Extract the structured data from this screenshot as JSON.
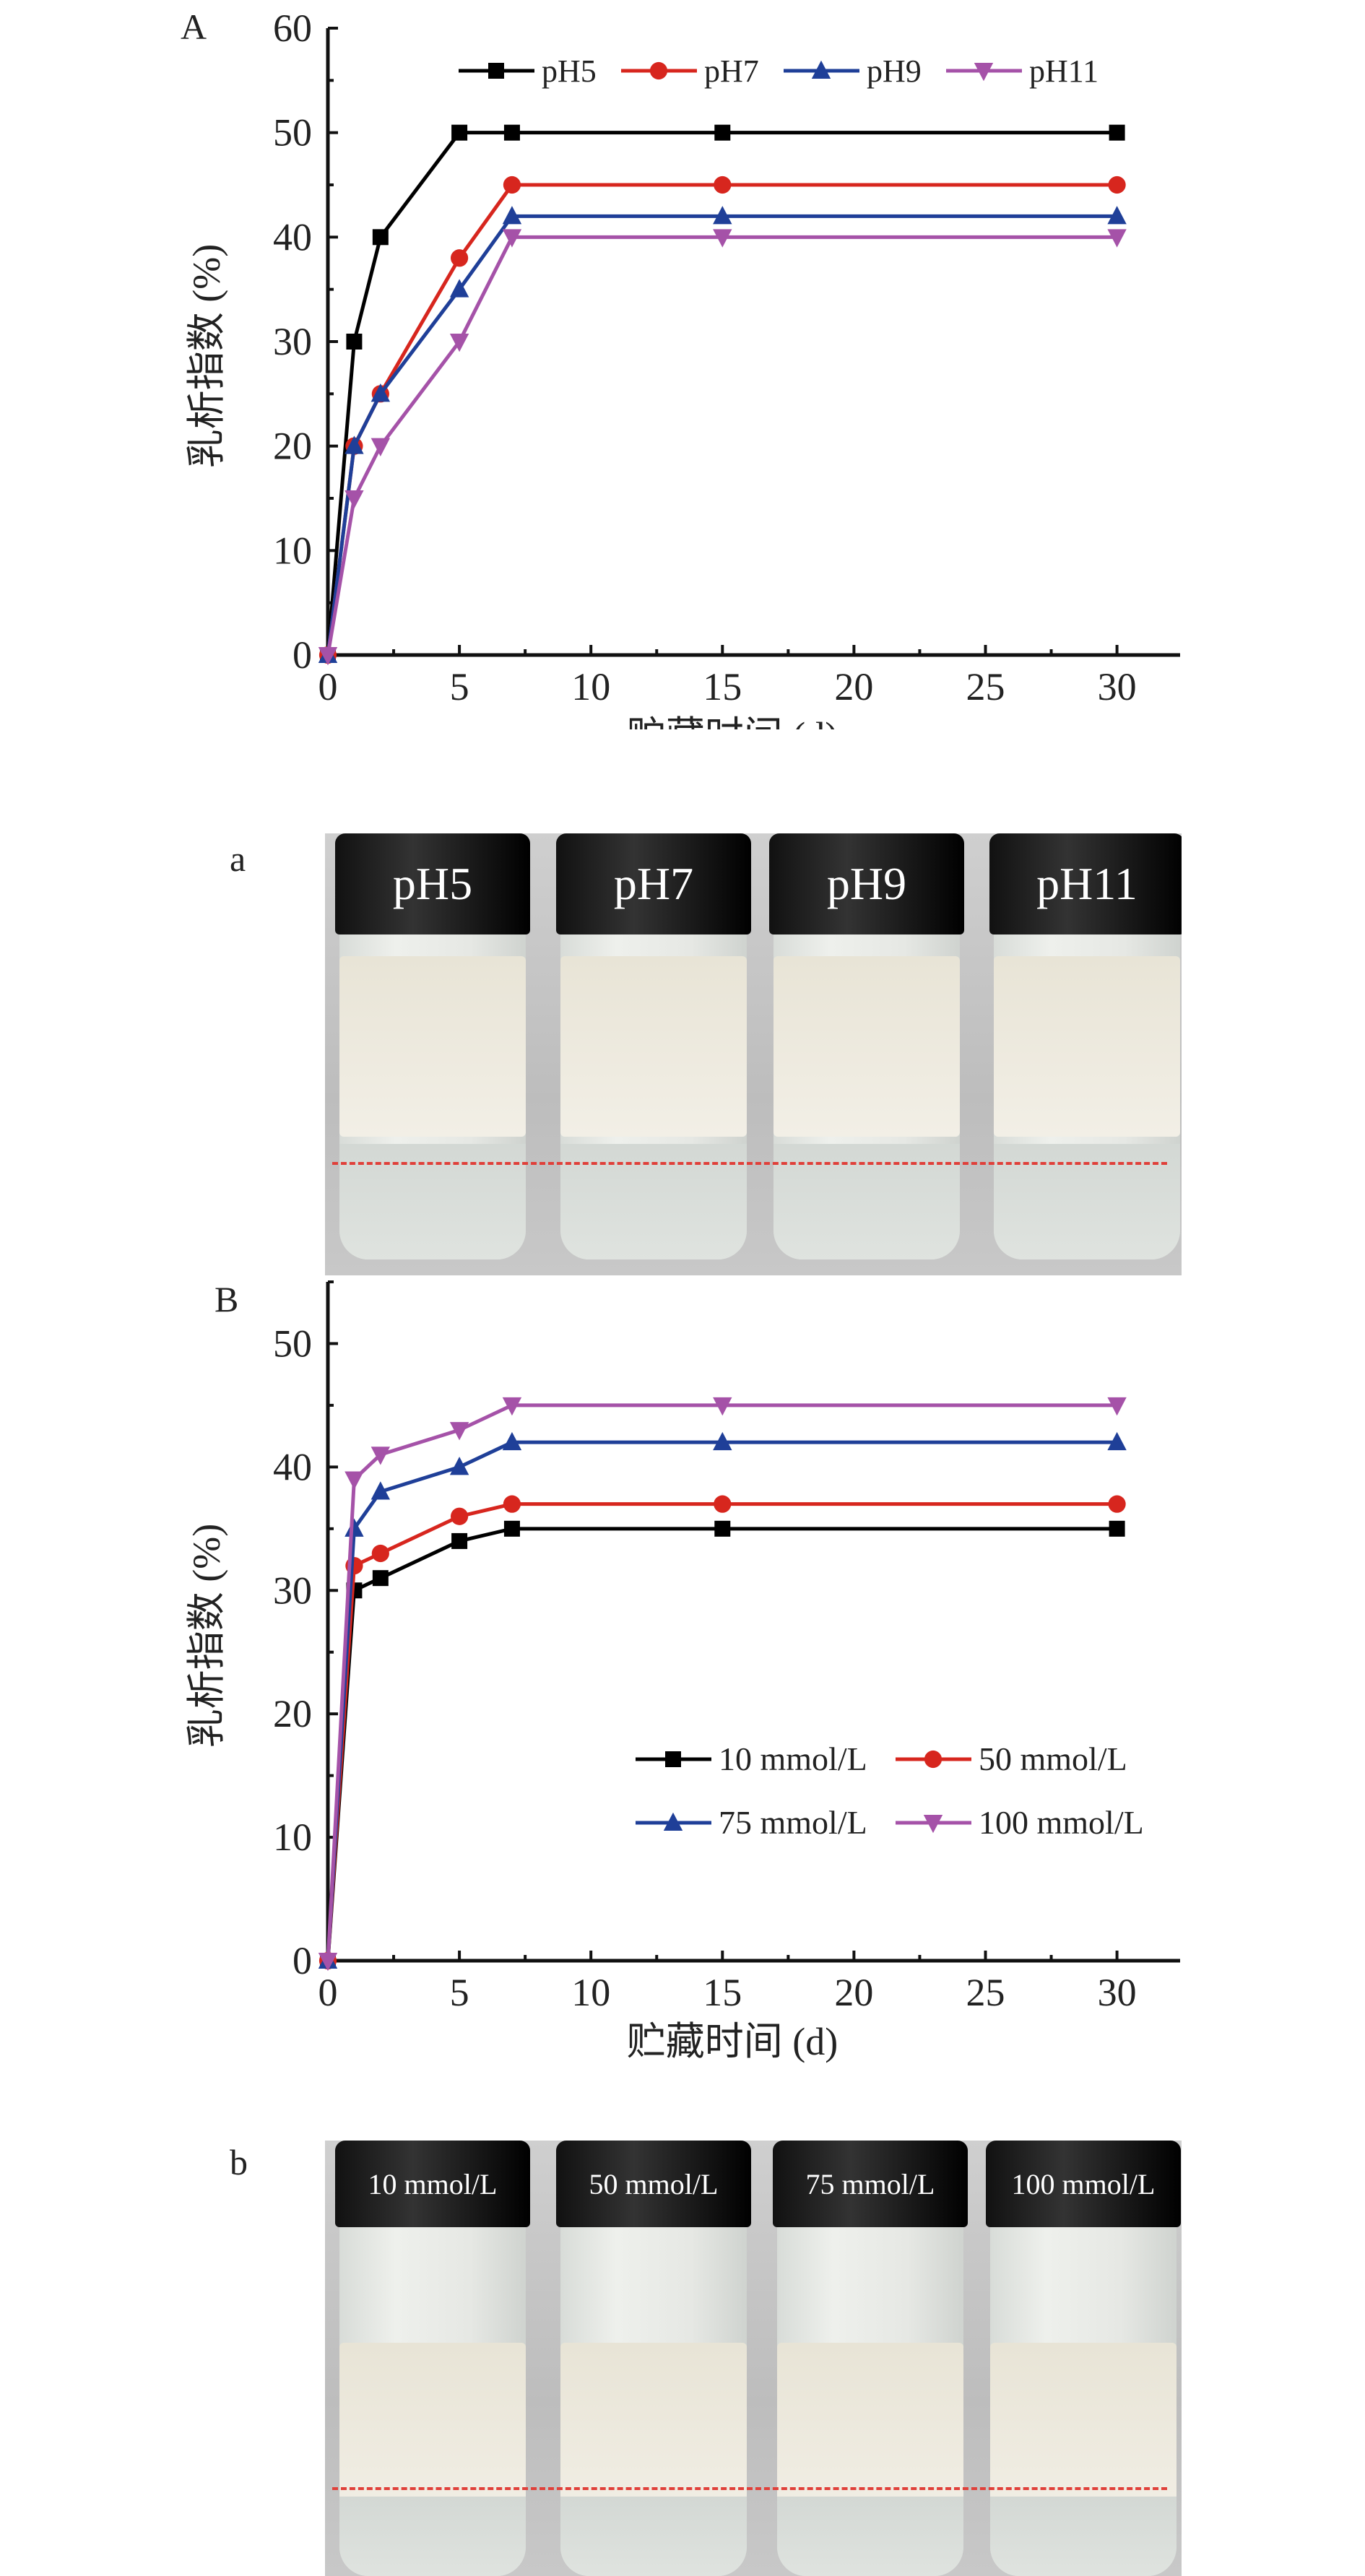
{
  "panels": {
    "A": "A",
    "a": "a",
    "B": "B",
    "b": "b"
  },
  "photo_a": {
    "labels": [
      "pH5",
      "pH7",
      "pH9",
      "pH11"
    ]
  },
  "photo_b": {
    "labels": [
      "10 mmol/L",
      "50 mmol/L",
      "75 mmol/L",
      "100 mmol/L"
    ]
  },
  "chart_data": [
    {
      "type": "line",
      "title": "",
      "xlabel": "贮藏时间 (d)",
      "ylabel": "乳析指数 (%)",
      "xlim": [
        0,
        32.4
      ],
      "ylim": [
        0,
        60
      ],
      "xticks": [
        0,
        5,
        10,
        15,
        20,
        25,
        30
      ],
      "yticks": [
        0,
        10,
        20,
        30,
        40,
        50,
        60
      ],
      "legend_position": "top",
      "x": [
        0,
        1,
        2,
        5,
        7,
        15,
        30
      ],
      "series": [
        {
          "name": "pH5",
          "color": "#000000",
          "marker": "square",
          "values": [
            0,
            30,
            40,
            50,
            50,
            50,
            50
          ]
        },
        {
          "name": "pH7",
          "color": "#d7261e",
          "marker": "circle",
          "values": [
            0,
            20,
            25,
            38,
            45,
            45,
            45
          ]
        },
        {
          "name": "pH9",
          "color": "#1f3f98",
          "marker": "triangle-up",
          "values": [
            0,
            20,
            25,
            35,
            42,
            42,
            42
          ]
        },
        {
          "name": "pH11",
          "color": "#a552a8",
          "marker": "triangle-down",
          "values": [
            0,
            15,
            20,
            30,
            40,
            40,
            40
          ]
        }
      ]
    },
    {
      "type": "line",
      "title": "",
      "xlabel": "贮藏时间 (d)",
      "ylabel": "乳析指数 (%)",
      "xlim": [
        0,
        32.4
      ],
      "ylim": [
        0,
        55
      ],
      "xticks": [
        0,
        5,
        10,
        15,
        20,
        25,
        30
      ],
      "yticks": [
        0,
        10,
        20,
        30,
        40,
        50
      ],
      "legend_position": "lower-right",
      "x": [
        0,
        1,
        2,
        5,
        7,
        15,
        30
      ],
      "series": [
        {
          "name": "10 mmol/L",
          "color": "#000000",
          "marker": "square",
          "values": [
            0,
            30,
            31,
            34,
            35,
            35,
            35
          ]
        },
        {
          "name": "50 mmol/L",
          "color": "#d7261e",
          "marker": "circle",
          "values": [
            0,
            32,
            33,
            36,
            37,
            37,
            37
          ]
        },
        {
          "name": "75 mmol/L",
          "color": "#1f3f98",
          "marker": "triangle-up",
          "values": [
            0,
            35,
            38,
            40,
            42,
            42,
            42
          ]
        },
        {
          "name": "100 mmol/L",
          "color": "#a552a8",
          "marker": "triangle-down",
          "values": [
            0,
            39,
            41,
            43,
            45,
            45,
            45
          ]
        }
      ]
    }
  ]
}
